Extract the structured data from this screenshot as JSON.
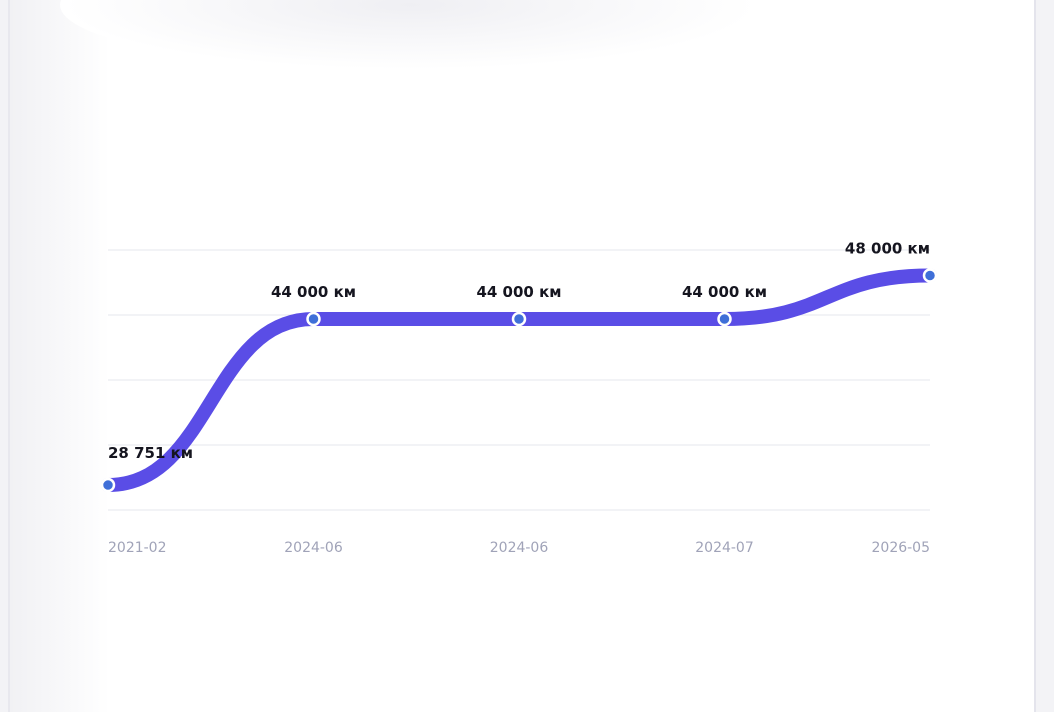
{
  "chart_data": {
    "type": "line",
    "categories": [
      "2021-02",
      "2024-06",
      "2024-06",
      "2024-07",
      "2026-05"
    ],
    "values": [
      28751,
      44000,
      44000,
      44000,
      48000
    ],
    "value_labels": [
      "28 751 км",
      "44 000 км",
      "44 000 км",
      "44 000 км",
      "48 000 км"
    ],
    "color": "#5a4de6",
    "ylim": [
      26460,
      50340
    ],
    "yticks": [
      26460,
      32430,
      38400,
      44370,
      50340
    ],
    "grid": true
  }
}
